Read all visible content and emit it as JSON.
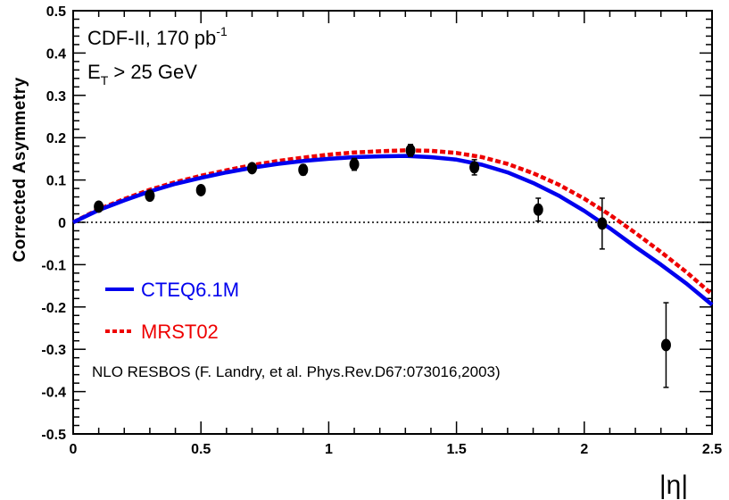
{
  "chart_data": {
    "type": "scatter",
    "title": "",
    "xlabel": "|η|",
    "ylabel": "Corrected Asymmetry",
    "xlim": [
      0,
      2.5
    ],
    "ylim": [
      -0.5,
      0.5
    ],
    "x_ticks": [
      "0",
      "0.5",
      "1",
      "1.5",
      "2",
      "2.5"
    ],
    "y_ticks": [
      "0.5",
      "0.4",
      "0.3",
      "0.2",
      "0.1",
      "0",
      "-0.1",
      "-0.2",
      "-0.3",
      "-0.4",
      "-0.5"
    ],
    "x_tick_values": [
      0,
      0.5,
      1,
      1.5,
      2,
      2.5
    ],
    "y_tick_values": [
      0.5,
      0.4,
      0.3,
      0.2,
      0.1,
      0,
      -0.1,
      -0.2,
      -0.3,
      -0.4,
      -0.5
    ],
    "annotations": {
      "experiment_prefix": "CDF-II, 170 pb",
      "experiment_sup": "-1",
      "cut_prefix": "E",
      "cut_sub": "T",
      "cut_suffix": " > 25 GeV",
      "reference": "NLO RESBOS (F. Landry, et al. Phys.Rev.D67:073016,2003)"
    },
    "legend": [
      "CTEQ6.1M",
      "MRST02"
    ],
    "colors": {
      "cteq": "#0000ee",
      "mrst": "#ee0000",
      "data": "#000000"
    },
    "data_points": {
      "x": [
        0.1,
        0.3,
        0.5,
        0.7,
        0.9,
        1.1,
        1.32,
        1.57,
        1.82,
        2.07,
        2.32
      ],
      "y": [
        0.037,
        0.063,
        0.076,
        0.128,
        0.124,
        0.137,
        0.17,
        0.13,
        0.03,
        -0.003,
        -0.29
      ],
      "err": [
        0.008,
        0.008,
        0.01,
        0.01,
        0.012,
        0.014,
        0.014,
        0.018,
        0.027,
        0.06,
        0.1
      ]
    },
    "series": [
      {
        "name": "CTEQ6.1M",
        "style": "solid",
        "x": [
          0.0,
          0.1,
          0.2,
          0.3,
          0.4,
          0.5,
          0.6,
          0.7,
          0.8,
          0.9,
          1.0,
          1.1,
          1.2,
          1.3,
          1.4,
          1.5,
          1.6,
          1.7,
          1.8,
          1.9,
          2.0,
          2.1,
          2.2,
          2.3,
          2.4,
          2.5
        ],
        "values": [
          0.0,
          0.029,
          0.052,
          0.073,
          0.091,
          0.105,
          0.118,
          0.129,
          0.138,
          0.145,
          0.15,
          0.154,
          0.156,
          0.157,
          0.154,
          0.148,
          0.136,
          0.118,
          0.093,
          0.063,
          0.027,
          -0.014,
          -0.058,
          -0.1,
          -0.145,
          -0.195
        ]
      },
      {
        "name": "MRST02",
        "style": "dashed",
        "x": [
          0.0,
          0.1,
          0.2,
          0.3,
          0.4,
          0.5,
          0.6,
          0.7,
          0.8,
          0.9,
          1.0,
          1.1,
          1.2,
          1.3,
          1.4,
          1.5,
          1.6,
          1.7,
          1.8,
          1.9,
          2.0,
          2.1,
          2.2,
          2.3,
          2.4,
          2.5
        ],
        "values": [
          0.0,
          0.031,
          0.055,
          0.077,
          0.095,
          0.11,
          0.123,
          0.135,
          0.145,
          0.153,
          0.16,
          0.165,
          0.168,
          0.17,
          0.169,
          0.164,
          0.154,
          0.138,
          0.116,
          0.089,
          0.056,
          0.018,
          -0.025,
          -0.07,
          -0.118,
          -0.17
        ]
      }
    ],
    "grid": false,
    "zero_line": true,
    "legend_position": "left-middle"
  }
}
